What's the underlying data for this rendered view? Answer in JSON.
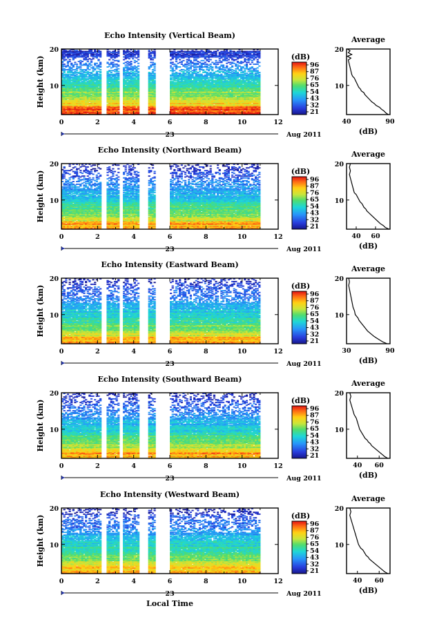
{
  "chart_data": [
    {
      "type": "heatmap",
      "title": "Echo Intensity (Vertical Beam)",
      "ylabel": "Height (km)",
      "xlim": [
        0,
        12
      ],
      "ylim": [
        2,
        20
      ],
      "x_ticks": [
        "0",
        "2",
        "4",
        "6",
        "8",
        "10",
        "12"
      ],
      "y_ticks": [
        "10",
        "20"
      ],
      "date_day": "23",
      "date_month_year": "Aug 2011",
      "data_span_hours": [
        0,
        11
      ],
      "gaps_hours": [
        [
          2.25,
          2.5
        ],
        [
          3.2,
          3.45
        ],
        [
          4.35,
          4.85
        ],
        [
          5.2,
          6.05
        ]
      ],
      "colorbar": {
        "unit": "(dB)",
        "range": [
          21,
          96
        ],
        "ticks": [
          "96",
          "87",
          "76",
          "65",
          "54",
          "43",
          "32",
          "21"
        ]
      },
      "profile": {
        "title": "Average",
        "xlabel": "(dB)",
        "xlim": [
          40,
          90
        ],
        "x_ticks": [
          "40",
          "90"
        ],
        "y_ticks": [
          "10",
          "20"
        ],
        "points": [
          [
            88,
            2
          ],
          [
            85,
            2.5
          ],
          [
            83,
            3
          ],
          [
            80,
            3.5
          ],
          [
            78,
            4
          ],
          [
            74,
            4.5
          ],
          [
            72,
            5
          ],
          [
            69,
            5.5
          ],
          [
            67,
            6
          ],
          [
            65,
            6.5
          ],
          [
            63,
            7
          ],
          [
            61,
            7.5
          ],
          [
            60,
            8
          ],
          [
            57,
            8.5
          ],
          [
            56,
            9
          ],
          [
            54,
            9.5
          ],
          [
            53,
            10
          ],
          [
            52,
            10.5
          ],
          [
            51,
            11
          ],
          [
            50,
            11.5
          ],
          [
            49,
            12
          ],
          [
            47,
            12.5
          ],
          [
            46,
            13
          ],
          [
            45,
            14
          ],
          [
            44,
            15
          ],
          [
            43,
            16
          ],
          [
            42,
            17
          ],
          [
            45,
            17.5
          ],
          [
            41,
            18
          ],
          [
            46,
            18.5
          ],
          [
            42,
            19
          ],
          [
            44,
            19.5
          ],
          [
            41,
            20
          ]
        ]
      }
    },
    {
      "type": "heatmap",
      "title": "Echo Intensity (Northward Beam)",
      "ylabel": "Height (km)",
      "xlim": [
        0,
        12
      ],
      "ylim": [
        2,
        20
      ],
      "x_ticks": [
        "0",
        "2",
        "4",
        "6",
        "8",
        "10",
        "12"
      ],
      "y_ticks": [
        "10",
        "20"
      ],
      "date_day": "23",
      "date_month_year": "Aug 2011",
      "data_span_hours": [
        0,
        11
      ],
      "gaps_hours": [
        [
          2.25,
          2.5
        ],
        [
          3.2,
          3.45
        ],
        [
          4.35,
          4.85
        ],
        [
          5.2,
          6.05
        ]
      ],
      "colorbar": {
        "unit": "(dB)",
        "range": [
          21,
          96
        ],
        "ticks": [
          "96",
          "87",
          "76",
          "65",
          "54",
          "43",
          "32",
          "21"
        ]
      },
      "profile": {
        "title": "Average",
        "xlabel": "(dB)",
        "xlim": [
          30,
          75
        ],
        "x_ticks": [
          "40",
          "60"
        ],
        "y_ticks": [
          "10",
          "20"
        ],
        "points": [
          [
            74,
            2
          ],
          [
            70,
            2.5
          ],
          [
            68,
            3
          ],
          [
            65,
            3.5
          ],
          [
            63,
            4
          ],
          [
            61,
            4.5
          ],
          [
            59,
            5
          ],
          [
            57,
            5.5
          ],
          [
            55,
            6
          ],
          [
            53,
            6.5
          ],
          [
            51,
            7
          ],
          [
            50,
            7.5
          ],
          [
            48,
            8
          ],
          [
            47,
            8.5
          ],
          [
            46,
            9
          ],
          [
            44,
            9.5
          ],
          [
            43,
            10
          ],
          [
            42,
            10.5
          ],
          [
            41,
            11
          ],
          [
            40,
            11.5
          ],
          [
            38,
            12
          ],
          [
            37,
            13
          ],
          [
            36,
            14
          ],
          [
            35,
            15
          ],
          [
            34,
            16
          ],
          [
            33,
            17
          ],
          [
            34,
            18
          ],
          [
            33,
            19
          ],
          [
            34,
            20
          ]
        ]
      }
    },
    {
      "type": "heatmap",
      "title": "Echo Intensity (Eastward Beam)",
      "ylabel": "Height (km)",
      "xlim": [
        0,
        12
      ],
      "ylim": [
        2,
        20
      ],
      "x_ticks": [
        "0",
        "2",
        "4",
        "6",
        "8",
        "10",
        "12"
      ],
      "y_ticks": [
        "10",
        "20"
      ],
      "date_day": "23",
      "date_month_year": "Aug 2011",
      "data_span_hours": [
        0,
        11
      ],
      "gaps_hours": [
        [
          2.25,
          2.5
        ],
        [
          3.2,
          3.45
        ],
        [
          4.35,
          4.85
        ],
        [
          5.2,
          6.05
        ]
      ],
      "colorbar": {
        "unit": "(dB)",
        "range": [
          21,
          96
        ],
        "ticks": [
          "96",
          "87",
          "76",
          "65",
          "54",
          "43",
          "32",
          "21"
        ]
      },
      "profile": {
        "title": "Average",
        "xlabel": "(dB)",
        "xlim": [
          30,
          90
        ],
        "x_ticks": [
          "30",
          "90"
        ],
        "y_ticks": [
          "10",
          "20"
        ],
        "points": [
          [
            86,
            2
          ],
          [
            80,
            2.5
          ],
          [
            76,
            3
          ],
          [
            72,
            3.5
          ],
          [
            68,
            4
          ],
          [
            65,
            4.5
          ],
          [
            62,
            5
          ],
          [
            59,
            5.5
          ],
          [
            57,
            6
          ],
          [
            55,
            6.5
          ],
          [
            53,
            7
          ],
          [
            51,
            7.5
          ],
          [
            49,
            8
          ],
          [
            47,
            8.5
          ],
          [
            46,
            9
          ],
          [
            44,
            9.5
          ],
          [
            42,
            10
          ],
          [
            41,
            11
          ],
          [
            39,
            12
          ],
          [
            38,
            13
          ],
          [
            37,
            14
          ],
          [
            36,
            15
          ],
          [
            35,
            16
          ],
          [
            34,
            17
          ],
          [
            33,
            18
          ],
          [
            34,
            19
          ],
          [
            33,
            20
          ]
        ]
      }
    },
    {
      "type": "heatmap",
      "title": "Echo Intensity (Southward Beam)",
      "ylabel": "Height (km)",
      "xlim": [
        0,
        12
      ],
      "ylim": [
        2,
        20
      ],
      "x_ticks": [
        "0",
        "2",
        "4",
        "6",
        "8",
        "10",
        "12"
      ],
      "y_ticks": [
        "10",
        "20"
      ],
      "date_day": "23",
      "date_month_year": "Aug 2011",
      "data_span_hours": [
        0,
        11
      ],
      "gaps_hours": [
        [
          2.25,
          2.5
        ],
        [
          3.2,
          3.45
        ],
        [
          4.35,
          4.85
        ],
        [
          5.2,
          6.05
        ]
      ],
      "colorbar": {
        "unit": "(dB)",
        "range": [
          21,
          96
        ],
        "ticks": [
          "96",
          "87",
          "76",
          "65",
          "54",
          "43",
          "32",
          "21"
        ]
      },
      "profile": {
        "title": "Average",
        "xlabel": "(dB)",
        "xlim": [
          30,
          70
        ],
        "x_ticks": [
          "40",
          "60"
        ],
        "y_ticks": [
          "10",
          "20"
        ],
        "points": [
          [
            68,
            2
          ],
          [
            65,
            2.5
          ],
          [
            63,
            3
          ],
          [
            61,
            3.5
          ],
          [
            59,
            4
          ],
          [
            57,
            4.5
          ],
          [
            55,
            5
          ],
          [
            53,
            5.5
          ],
          [
            52,
            6
          ],
          [
            50,
            6.5
          ],
          [
            49,
            7
          ],
          [
            47,
            7.5
          ],
          [
            46,
            8
          ],
          [
            45,
            8.5
          ],
          [
            44,
            9
          ],
          [
            43,
            9.5
          ],
          [
            42,
            10
          ],
          [
            41,
            11
          ],
          [
            40,
            12
          ],
          [
            39,
            13
          ],
          [
            37,
            14
          ],
          [
            36,
            15
          ],
          [
            35,
            16
          ],
          [
            34,
            17
          ],
          [
            33,
            18
          ],
          [
            34,
            19
          ],
          [
            33,
            20
          ]
        ]
      }
    },
    {
      "type": "heatmap",
      "title": "Echo Intensity (Westward Beam)",
      "ylabel": "Height (km)",
      "xlabel": "Local Time",
      "xlim": [
        0,
        12
      ],
      "ylim": [
        2,
        20
      ],
      "x_ticks": [
        "0",
        "2",
        "4",
        "6",
        "8",
        "10",
        "12"
      ],
      "y_ticks": [
        "10",
        "20"
      ],
      "date_day": "23",
      "date_month_year": "Aug 2011",
      "data_span_hours": [
        0,
        11
      ],
      "gaps_hours": [
        [
          2.25,
          2.5
        ],
        [
          3.2,
          3.45
        ],
        [
          4.35,
          4.85
        ],
        [
          5.2,
          6.05
        ]
      ],
      "colorbar": {
        "unit": "(dB)",
        "range": [
          21,
          96
        ],
        "ticks": [
          "96",
          "87",
          "76",
          "65",
          "54",
          "43",
          "32",
          "21"
        ]
      },
      "profile": {
        "title": "Average",
        "xlabel": "(dB)",
        "xlim": [
          30,
          70
        ],
        "x_ticks": [
          "40",
          "60"
        ],
        "y_ticks": [
          "10",
          "20"
        ],
        "points": [
          [
            68,
            2
          ],
          [
            65,
            2.5
          ],
          [
            63,
            3
          ],
          [
            61,
            3.5
          ],
          [
            59,
            4
          ],
          [
            57,
            4.5
          ],
          [
            55,
            5
          ],
          [
            53,
            5.5
          ],
          [
            51,
            6
          ],
          [
            50,
            6.5
          ],
          [
            48,
            7
          ],
          [
            47,
            7.5
          ],
          [
            46,
            8
          ],
          [
            45,
            8.5
          ],
          [
            43,
            9
          ],
          [
            42,
            9.5
          ],
          [
            41,
            10
          ],
          [
            40,
            11
          ],
          [
            39,
            12
          ],
          [
            38,
            13
          ],
          [
            37,
            14
          ],
          [
            36,
            15
          ],
          [
            35,
            16
          ],
          [
            34,
            17
          ],
          [
            33,
            18
          ],
          [
            34,
            19
          ],
          [
            33,
            20
          ]
        ]
      }
    }
  ]
}
